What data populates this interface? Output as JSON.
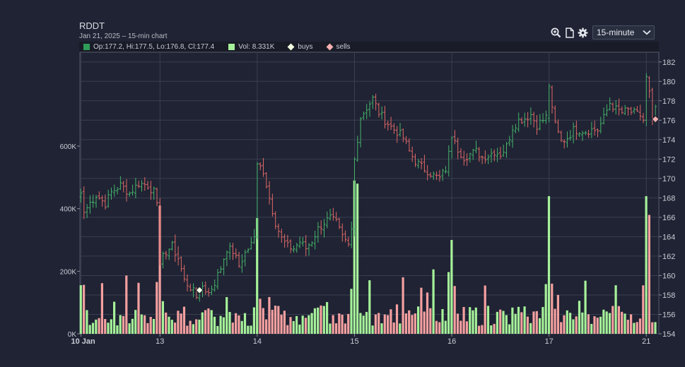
{
  "header": {
    "ticker": "RDDT",
    "subtitle": "Jan 21, 2025 – 15-min chart"
  },
  "toolbar": {
    "interval": "15-minute",
    "icons": [
      "zoom-in-icon",
      "document-icon",
      "gear-icon",
      "chevron-down-icon"
    ]
  },
  "legend": {
    "ohlc_text": "Op:177.2, Hi:177.5, Lo:176.8, Cl:177.4",
    "vol_text": "Vol: 8.331K",
    "buys_label": "buys",
    "sells_label": "sells"
  },
  "colors": {
    "up": "#45b36b",
    "down": "#e06767",
    "vol_up": "#a6f29a",
    "vol_down": "#f5a0a0",
    "buy_marker": "#f0ffe0",
    "sell_marker": "#f5b0b0",
    "grid": "#3a3f52",
    "background": "#1f2333"
  },
  "chart_data": {
    "type": "candlestick-ohlc-volume",
    "x_ticks": [
      {
        "label": "10 Jan",
        "index": 0
      },
      {
        "label": "13",
        "index": 26
      },
      {
        "label": "14",
        "index": 58
      },
      {
        "label": "15",
        "index": 90
      },
      {
        "label": "16",
        "index": 122
      },
      {
        "label": "17",
        "index": 154
      },
      {
        "label": "21",
        "index": 186
      }
    ],
    "price_axis": {
      "min": 154,
      "max": 183,
      "ticks": [
        154,
        156,
        158,
        160,
        162,
        164,
        166,
        168,
        170,
        172,
        174,
        176,
        178,
        180,
        182
      ]
    },
    "volume_axis": {
      "min": 0,
      "max": 900000,
      "ticks": [
        {
          "v": 0,
          "label": "0K"
        },
        {
          "v": 200000,
          "label": "200K"
        },
        {
          "v": 400000,
          "label": "400K"
        },
        {
          "v": 600000,
          "label": "600K"
        }
      ]
    },
    "close_path": [
      [
        0,
        168.5
      ],
      [
        1,
        166.5
      ],
      [
        3,
        167.5
      ],
      [
        5,
        168.3
      ],
      [
        8,
        167.4
      ],
      [
        10,
        168.6
      ],
      [
        13,
        169.3
      ],
      [
        16,
        168.5
      ],
      [
        19,
        169.5
      ],
      [
        22,
        169.3
      ],
      [
        24,
        168.6
      ],
      [
        25,
        167.5
      ],
      [
        26,
        161.2
      ],
      [
        28,
        162.5
      ],
      [
        30,
        163.0
      ],
      [
        32,
        161.8
      ],
      [
        34,
        159.5
      ],
      [
        36,
        158.8
      ],
      [
        38,
        157.8
      ],
      [
        39,
        158.5
      ],
      [
        40,
        158.9
      ],
      [
        42,
        158.2
      ],
      [
        44,
        159.3
      ],
      [
        46,
        160.8
      ],
      [
        48,
        162.8
      ],
      [
        50,
        162.5
      ],
      [
        52,
        161.0
      ],
      [
        54,
        162.3
      ],
      [
        56,
        163.2
      ],
      [
        57,
        164.0
      ],
      [
        58,
        171.5
      ],
      [
        60,
        170.8
      ],
      [
        62,
        168.0
      ],
      [
        64,
        165.5
      ],
      [
        66,
        163.8
      ],
      [
        68,
        163.0
      ],
      [
        70,
        162.8
      ],
      [
        72,
        163.5
      ],
      [
        74,
        162.8
      ],
      [
        76,
        163.6
      ],
      [
        78,
        164.8
      ],
      [
        80,
        165.5
      ],
      [
        82,
        165.9
      ],
      [
        84,
        165.4
      ],
      [
        86,
        164.0
      ],
      [
        88,
        163.2
      ],
      [
        89,
        164.8
      ],
      [
        90,
        172.0
      ],
      [
        92,
        176.3
      ],
      [
        94,
        177.3
      ],
      [
        96,
        178.2
      ],
      [
        98,
        176.8
      ],
      [
        100,
        176.0
      ],
      [
        102,
        175.3
      ],
      [
        104,
        174.8
      ],
      [
        106,
        174.2
      ],
      [
        108,
        172.8
      ],
      [
        110,
        171.8
      ],
      [
        112,
        171.2
      ],
      [
        114,
        170.8
      ],
      [
        116,
        170.3
      ],
      [
        118,
        170.0
      ],
      [
        120,
        171.0
      ],
      [
        121,
        172.8
      ],
      [
        122,
        174.2
      ],
      [
        124,
        173.0
      ],
      [
        126,
        172.2
      ],
      [
        128,
        172.5
      ],
      [
        130,
        172.8
      ],
      [
        132,
        172.2
      ],
      [
        134,
        172.4
      ],
      [
        136,
        172.8
      ],
      [
        138,
        172.5
      ],
      [
        140,
        173.3
      ],
      [
        142,
        175.3
      ],
      [
        144,
        176.0
      ],
      [
        146,
        176.2
      ],
      [
        148,
        176.6
      ],
      [
        150,
        175.5
      ],
      [
        153,
        176.3
      ],
      [
        154,
        179.5
      ],
      [
        156,
        175.5
      ],
      [
        158,
        173.8
      ],
      [
        160,
        174.2
      ],
      [
        162,
        175.0
      ],
      [
        164,
        175.0
      ],
      [
        166,
        174.9
      ],
      [
        168,
        175.0
      ],
      [
        170,
        175.0
      ],
      [
        172,
        176.2
      ],
      [
        174,
        177.8
      ],
      [
        176,
        177.1
      ],
      [
        178,
        176.8
      ],
      [
        180,
        177.0
      ],
      [
        182,
        176.7
      ],
      [
        184,
        176.5
      ],
      [
        185,
        176.0
      ],
      [
        186,
        180.5
      ],
      [
        187,
        179.0
      ],
      [
        188,
        176.0
      ],
      [
        189,
        177.4
      ]
    ],
    "volume_spikes": [
      {
        "index": 26,
        "value": 410000
      },
      {
        "index": 58,
        "value": 370000
      },
      {
        "index": 90,
        "value": 490000
      },
      {
        "index": 91,
        "value": 480000
      },
      {
        "index": 122,
        "value": 300000
      },
      {
        "index": 154,
        "value": 440000
      },
      {
        "index": 186,
        "value": 440000
      },
      {
        "index": 187,
        "value": 380000
      }
    ],
    "markers": [
      {
        "type": "buy",
        "index": 39,
        "price": 158.5
      },
      {
        "type": "sell",
        "index": 189,
        "price": 176.1
      }
    ]
  }
}
